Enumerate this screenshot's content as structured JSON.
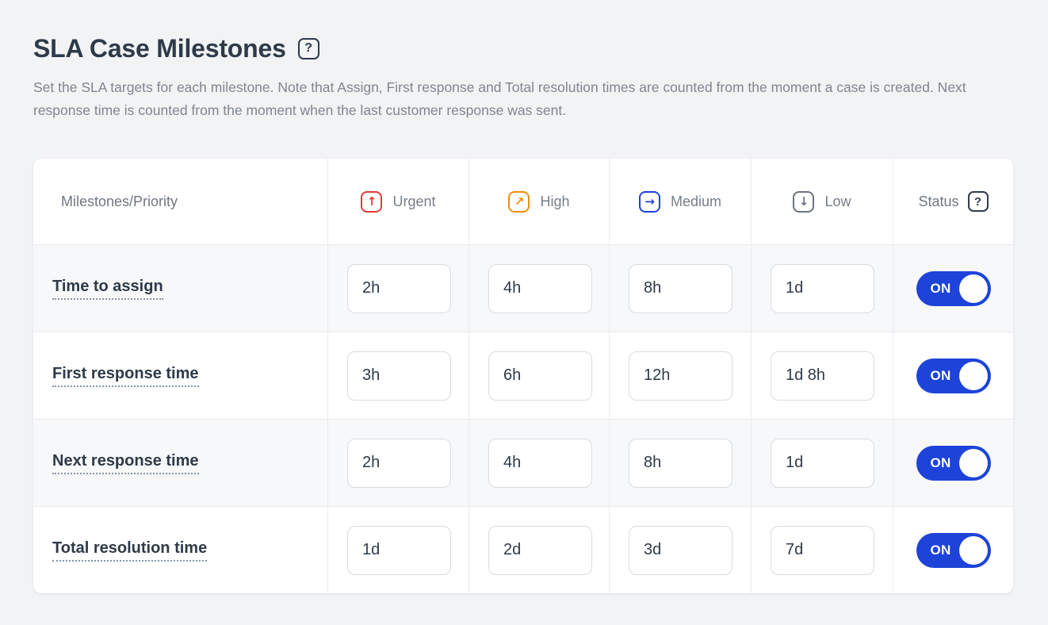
{
  "page": {
    "title": "SLA Case Milestones",
    "title_help_glyph": "?",
    "description": "Set the SLA targets for each milestone. Note that Assign, First response and Total resolution times are counted from the moment a case is created. Next response time is counted from the moment when the last customer response was sent."
  },
  "table": {
    "columns": {
      "milestones": "Milestones/Priority",
      "status": "Status",
      "status_help_glyph": "?"
    },
    "priorities": [
      {
        "label": "Urgent",
        "icon": "arrow-up-icon",
        "glyph": "↑",
        "color": "#e23b3b"
      },
      {
        "label": "High",
        "icon": "arrow-up-right-icon",
        "glyph": "↗",
        "color": "#ef8e0d"
      },
      {
        "label": "Medium",
        "icon": "arrow-right-icon",
        "glyph": "→",
        "color": "#1d43d8"
      },
      {
        "label": "Low",
        "icon": "arrow-down-icon",
        "glyph": "↓",
        "color": "#6b7280"
      }
    ],
    "rows": [
      {
        "milestone": "Time to assign",
        "values": [
          "2h",
          "4h",
          "8h",
          "1d"
        ],
        "status": "ON"
      },
      {
        "milestone": "First response time",
        "values": [
          "3h",
          "6h",
          "12h",
          "1d 8h"
        ],
        "status": "ON"
      },
      {
        "milestone": "Next response time",
        "values": [
          "2h",
          "4h",
          "8h",
          "1d"
        ],
        "status": "ON"
      },
      {
        "milestone": "Total resolution time",
        "values": [
          "1d",
          "2d",
          "3d",
          "7d"
        ],
        "status": "ON"
      }
    ]
  },
  "colors": {
    "toggle_on": "#1d43d8",
    "urgent": "#e23b3b",
    "high": "#ef8e0d",
    "medium": "#1d43d8",
    "low": "#6b7280"
  }
}
